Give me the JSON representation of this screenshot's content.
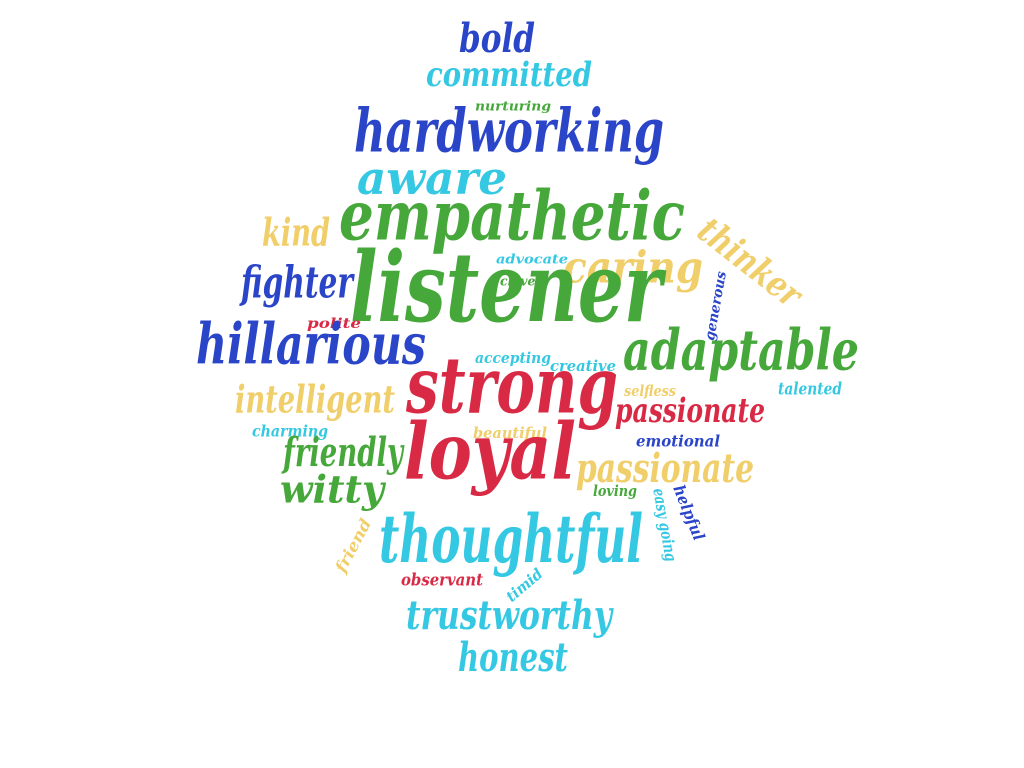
{
  "palette": {
    "blue": "#2b45c9",
    "cyan": "#35c8e3",
    "green": "#46a83a",
    "yellow": "#f0ce6a",
    "red": "#d92a45"
  },
  "words": [
    {
      "text": "bold",
      "color": "blue"
    },
    {
      "text": "committed",
      "color": "cyan"
    },
    {
      "text": "nurturing",
      "color": "green"
    },
    {
      "text": "hardworking",
      "color": "blue"
    },
    {
      "text": "aware",
      "color": "cyan"
    },
    {
      "text": "empathetic",
      "color": "green"
    },
    {
      "text": "kind",
      "color": "yellow"
    },
    {
      "text": "thinker",
      "color": "yellow"
    },
    {
      "text": "advocate",
      "color": "cyan"
    },
    {
      "text": "clever",
      "color": "green"
    },
    {
      "text": "caring",
      "color": "yellow"
    },
    {
      "text": "fighter",
      "color": "blue"
    },
    {
      "text": "listener",
      "color": "green"
    },
    {
      "text": "generous",
      "color": "blue"
    },
    {
      "text": "polite",
      "color": "red"
    },
    {
      "text": "hillarious",
      "color": "blue"
    },
    {
      "text": "accepting",
      "color": "cyan"
    },
    {
      "text": "creative",
      "color": "cyan"
    },
    {
      "text": "adaptable",
      "color": "green"
    },
    {
      "text": "strong",
      "color": "red"
    },
    {
      "text": "selfless",
      "color": "yellow"
    },
    {
      "text": "talented",
      "color": "cyan"
    },
    {
      "text": "intelligent",
      "color": "yellow"
    },
    {
      "text": "passionate",
      "color": "red"
    },
    {
      "text": "charming",
      "color": "cyan"
    },
    {
      "text": "beautiful",
      "color": "yellow"
    },
    {
      "text": "emotional",
      "color": "blue"
    },
    {
      "text": "friendly",
      "color": "green"
    },
    {
      "text": "loyal",
      "color": "red"
    },
    {
      "text": "passionate",
      "color": "yellow"
    },
    {
      "text": "loving",
      "color": "green"
    },
    {
      "text": "easy going",
      "color": "cyan"
    },
    {
      "text": "helpful",
      "color": "blue"
    },
    {
      "text": "witty",
      "color": "green"
    },
    {
      "text": "thoughtful",
      "color": "cyan"
    },
    {
      "text": "friend",
      "color": "yellow"
    },
    {
      "text": "observant",
      "color": "red"
    },
    {
      "text": "timid",
      "color": "cyan"
    },
    {
      "text": "trustworthy",
      "color": "cyan"
    },
    {
      "text": "honest",
      "color": "cyan"
    }
  ]
}
